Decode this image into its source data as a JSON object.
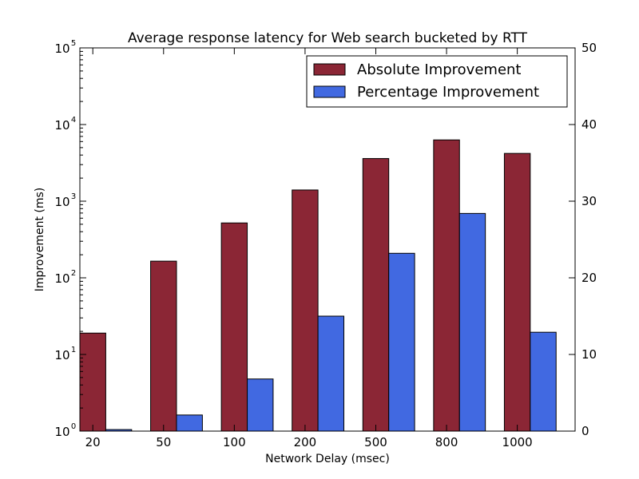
{
  "chart_data": {
    "type": "bar",
    "title": "Average response latency for Web search bucketed by RTT",
    "xlabel": "Network Delay (msec)",
    "ylabel": "Improvement (ms)",
    "y2label": "",
    "categories": [
      "20",
      "50",
      "100",
      "200",
      "500",
      "800",
      "1000"
    ],
    "y_scale": "log",
    "ylim": [
      1,
      100000
    ],
    "y_ticks": [
      {
        "base": "10",
        "exp": "0"
      },
      {
        "base": "10",
        "exp": "1"
      },
      {
        "base": "10",
        "exp": "2"
      },
      {
        "base": "10",
        "exp": "3"
      },
      {
        "base": "10",
        "exp": "4"
      },
      {
        "base": "10",
        "exp": "5"
      }
    ],
    "y2_scale": "linear",
    "y2lim": [
      0,
      50
    ],
    "y2_ticks": [
      "0",
      "10",
      "20",
      "30",
      "40",
      "50"
    ],
    "legend_position": "top-right",
    "grid": false,
    "series": [
      {
        "name": "Absolute Improvement",
        "axis": "left",
        "color": "#8b2635",
        "values": [
          19,
          165,
          520,
          1400,
          3600,
          6300,
          4200
        ]
      },
      {
        "name": "Percentage Improvement",
        "axis": "right",
        "color": "#4169e1",
        "values": [
          0.2,
          2.1,
          6.8,
          15.0,
          23.2,
          28.4,
          12.9
        ]
      }
    ]
  }
}
